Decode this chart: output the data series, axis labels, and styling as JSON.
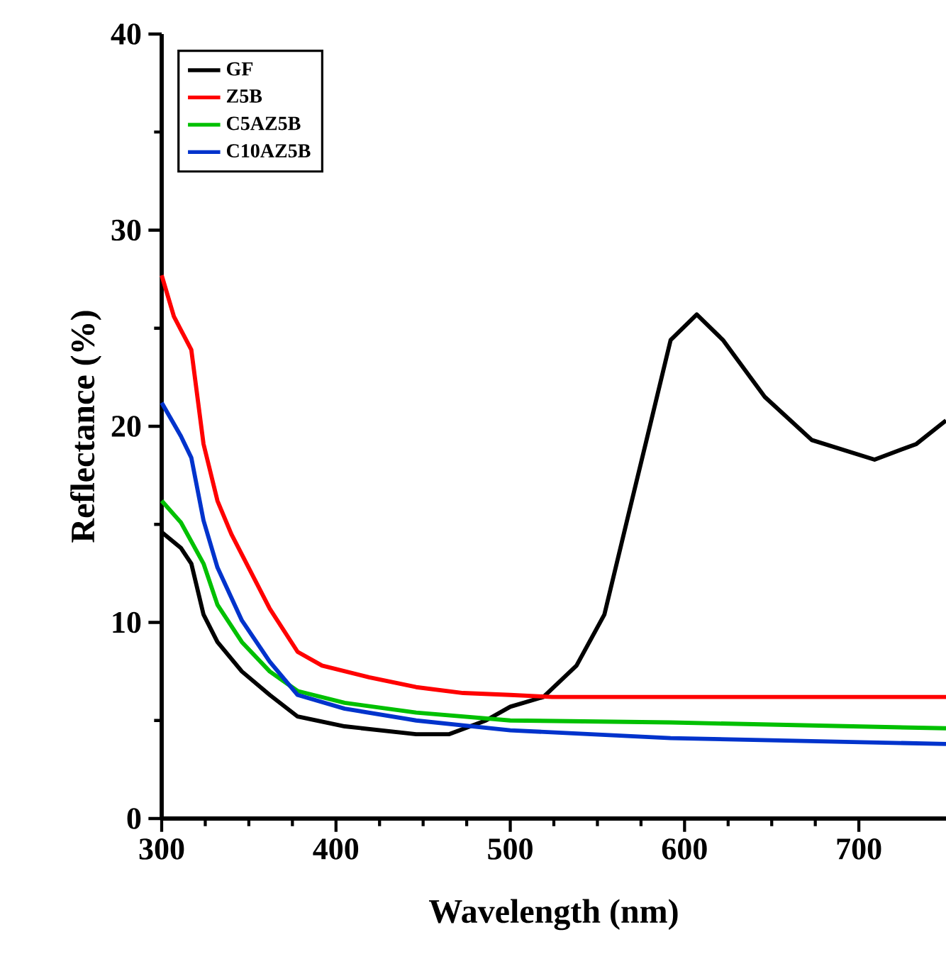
{
  "chart_data": {
    "type": "line",
    "xlabel": "Wavelength (nm)",
    "ylabel": "Reflectance (%)",
    "xlim": [
      300,
      750
    ],
    "xticks": [
      300,
      400,
      500,
      600,
      700
    ],
    "ylim": [
      0,
      40
    ],
    "yticks": [
      0,
      10,
      20,
      30,
      40
    ],
    "legend": "top left",
    "grid": false,
    "marker": "none",
    "line_style": "solid",
    "series": [
      {
        "name": "GF",
        "color": "#000000",
        "x": [
          300,
          311,
          317,
          324,
          332,
          346,
          362,
          378,
          405,
          446,
          465,
          486,
          500,
          519,
          538,
          554,
          567,
          579,
          592,
          607,
          622,
          646,
          673,
          709,
          733,
          750
        ],
        "values": [
          14.6,
          13.8,
          13.0,
          10.4,
          9.0,
          7.5,
          6.3,
          5.2,
          4.7,
          4.3,
          4.3,
          5.0,
          5.7,
          6.2,
          7.8,
          10.4,
          15.2,
          19.6,
          24.4,
          25.7,
          24.4,
          21.5,
          19.3,
          18.3,
          19.1,
          20.3
        ]
      },
      {
        "name": "Z5B",
        "color": "#ff0000",
        "x": [
          300,
          307,
          317,
          324,
          332,
          340,
          351,
          362,
          378,
          392,
          419,
          446,
          473,
          500,
          524,
          600,
          750
        ],
        "values": [
          27.7,
          25.6,
          23.9,
          19.1,
          16.2,
          14.5,
          12.6,
          10.7,
          8.5,
          7.8,
          7.2,
          6.7,
          6.4,
          6.3,
          6.2,
          6.2,
          6.2
        ]
      },
      {
        "name": "C5AZ5B",
        "color": "#00c000",
        "x": [
          300,
          311,
          324,
          332,
          346,
          362,
          378,
          405,
          446,
          500,
          592,
          750
        ],
        "values": [
          16.2,
          15.1,
          13.0,
          10.9,
          9.0,
          7.5,
          6.5,
          5.9,
          5.4,
          5.0,
          4.9,
          4.6
        ]
      },
      {
        "name": "C10AZ5B",
        "color": "#0033cc",
        "x": [
          300,
          311,
          317,
          324,
          332,
          346,
          362,
          378,
          405,
          446,
          500,
          592,
          750
        ],
        "values": [
          21.2,
          19.5,
          18.4,
          15.2,
          12.8,
          10.1,
          8.0,
          6.3,
          5.6,
          5.0,
          4.5,
          4.1,
          3.8
        ]
      }
    ]
  }
}
